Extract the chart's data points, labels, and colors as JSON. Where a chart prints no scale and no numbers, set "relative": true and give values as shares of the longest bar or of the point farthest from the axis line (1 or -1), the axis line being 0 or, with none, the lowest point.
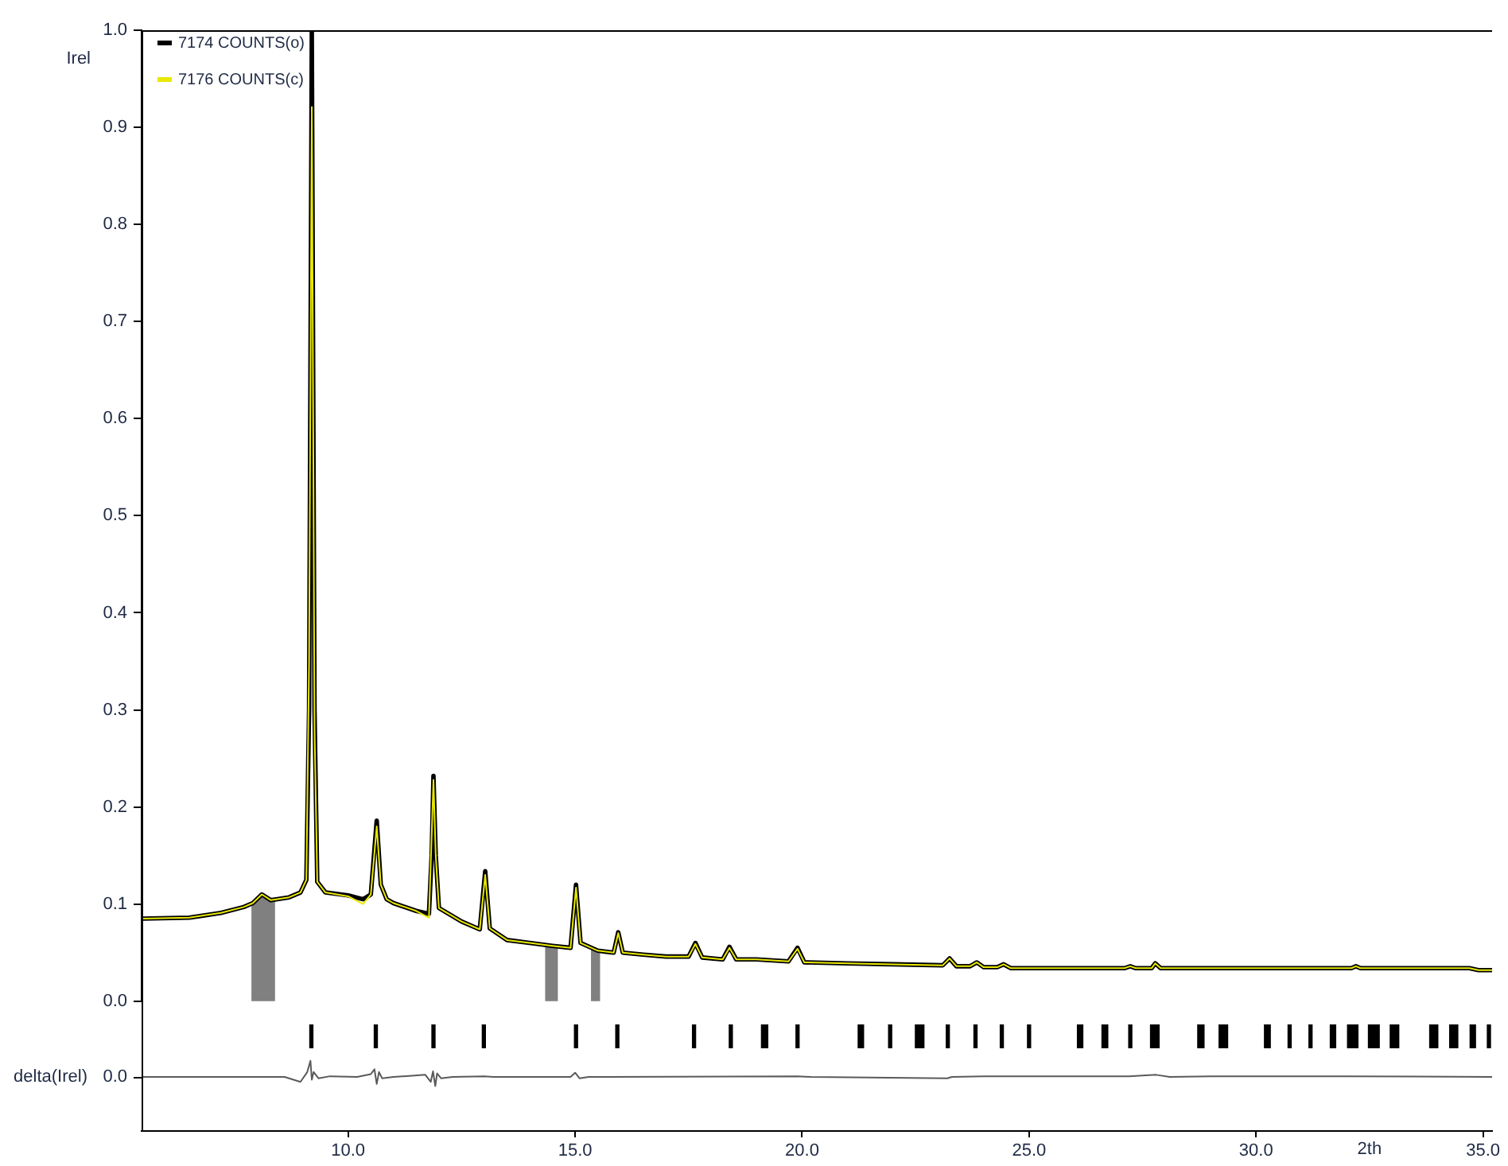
{
  "chart_data": [
    {
      "type": "line",
      "ylabel": "Irel",
      "xlim": [
        5.45,
        35.2
      ],
      "ylim": [
        0,
        1
      ],
      "yticks": [
        {
          "value": 0,
          "label": "0.0"
        },
        0.1,
        0.2,
        0.3,
        0.4,
        0.5,
        0.6,
        0.7,
        0.8,
        0.9,
        {
          "value": 1,
          "label": "1.0"
        }
      ],
      "tick_labels": "y",
      "legend": "top left",
      "x": [
        5.45,
        6.5,
        7.2,
        7.7,
        7.9,
        8.1,
        8.3,
        8.7,
        8.95,
        9.08,
        9.14,
        9.2,
        9.26,
        9.32,
        9.5,
        10.0,
        10.33,
        10.5,
        10.63,
        10.72,
        10.85,
        11.0,
        11.5,
        11.78,
        11.84,
        11.88,
        11.93,
        12.0,
        12.5,
        12.9,
        13.02,
        13.12,
        13.5,
        14.0,
        14.5,
        14.9,
        15.02,
        15.12,
        15.5,
        15.85,
        15.95,
        16.05,
        16.5,
        17.0,
        17.5,
        17.65,
        17.8,
        18.25,
        18.4,
        18.55,
        19.0,
        19.7,
        19.9,
        20.05,
        21.0,
        22.0,
        23.1,
        23.25,
        23.4,
        23.7,
        23.85,
        24.0,
        24.3,
        24.44,
        24.6,
        27.1,
        27.23,
        27.35,
        27.7,
        27.78,
        27.9,
        32.1,
        32.2,
        32.3,
        34.7,
        34.9,
        35.2
      ],
      "series": [
        {
          "name": "7174 COUNTS(o)",
          "color": "#000000",
          "values": [
            0.085,
            0.086,
            0.091,
            0.097,
            0.101,
            0.11,
            0.104,
            0.107,
            0.112,
            0.125,
            0.3,
            1.0,
            0.3,
            0.123,
            0.112,
            0.109,
            0.105,
            0.11,
            0.186,
            0.12,
            0.105,
            0.101,
            0.093,
            0.09,
            0.15,
            0.232,
            0.15,
            0.096,
            0.082,
            0.074,
            0.134,
            0.075,
            0.063,
            0.06,
            0.057,
            0.055,
            0.12,
            0.06,
            0.052,
            0.05,
            0.071,
            0.05,
            0.048,
            0.046,
            0.046,
            0.06,
            0.045,
            0.043,
            0.056,
            0.043,
            0.043,
            0.041,
            0.055,
            0.04,
            0.039,
            0.038,
            0.037,
            0.044,
            0.036,
            0.036,
            0.04,
            0.035,
            0.035,
            0.038,
            0.034,
            0.034,
            0.036,
            0.034,
            0.034,
            0.039,
            0.034,
            0.034,
            0.036,
            0.034,
            0.034,
            0.032,
            0.032
          ]
        },
        {
          "name": "7176 COUNTS(c)",
          "color": "#e8e800",
          "values": [
            0.085,
            0.086,
            0.091,
            0.097,
            0.101,
            0.11,
            0.104,
            0.107,
            0.112,
            0.125,
            0.35,
            0.921,
            0.28,
            0.123,
            0.112,
            0.108,
            0.1,
            0.11,
            0.18,
            0.12,
            0.105,
            0.101,
            0.093,
            0.086,
            0.17,
            0.228,
            0.15,
            0.096,
            0.082,
            0.074,
            0.13,
            0.075,
            0.063,
            0.06,
            0.057,
            0.055,
            0.117,
            0.06,
            0.052,
            0.05,
            0.07,
            0.05,
            0.048,
            0.046,
            0.046,
            0.059,
            0.045,
            0.043,
            0.055,
            0.043,
            0.043,
            0.041,
            0.054,
            0.04,
            0.039,
            0.038,
            0.037,
            0.044,
            0.036,
            0.036,
            0.04,
            0.035,
            0.035,
            0.038,
            0.034,
            0.034,
            0.036,
            0.034,
            0.034,
            0.039,
            0.034,
            0.034,
            0.036,
            0.034,
            0.034,
            0.032,
            0.032
          ]
        }
      ],
      "bands": [
        {
          "axis": "x",
          "from": 7.87,
          "to": 8.39,
          "color": "#808080"
        },
        {
          "axis": "x",
          "from": 14.34,
          "to": 14.62,
          "color": "#808080"
        },
        {
          "axis": "x",
          "from": 15.35,
          "to": 15.55,
          "color": "#808080"
        }
      ]
    },
    {
      "type": "bar",
      "relative": true,
      "xlim": [
        5.45,
        35.2
      ],
      "tick_labels": false,
      "color": "#000000",
      "x": [
        9.19,
        10.61,
        11.88,
        12.99,
        15.02,
        15.93,
        17.62,
        18.43,
        19.14,
        19.21,
        19.9,
        21.27,
        21.32,
        21.94,
        22.53,
        22.59,
        22.65,
        23.21,
        23.82,
        24.4,
        25.0,
        26.1,
        26.15,
        26.64,
        26.7,
        27.23,
        27.71,
        27.77,
        27.83,
        28.75,
        28.82,
        29.22,
        29.28,
        29.34,
        30.22,
        30.28,
        30.74,
        31.2,
        31.67,
        31.72,
        32.05,
        32.09,
        32.15,
        32.21,
        32.51,
        32.57,
        32.62,
        32.68,
        32.99,
        33.05,
        33.11,
        33.86,
        33.92,
        33.97,
        34.3,
        34.35,
        34.41,
        34.75,
        34.8,
        35.13
      ],
      "values": [
        1,
        1,
        1,
        1,
        1,
        1,
        1,
        1,
        1,
        1,
        1,
        1,
        1,
        1,
        1,
        1,
        1,
        1,
        1,
        1,
        1,
        1,
        1,
        1,
        1,
        1,
        1,
        1,
        1,
        1,
        1,
        1,
        1,
        1,
        1,
        1,
        1,
        1,
        1,
        1,
        1,
        1,
        1,
        1,
        1,
        1,
        1,
        1,
        1,
        1,
        1,
        1,
        1,
        1,
        1,
        1,
        1,
        1,
        1,
        1
      ]
    },
    {
      "type": "line",
      "relative": true,
      "ylabel": "delta(Irel)",
      "xlabel": "2th",
      "xlim": [
        5.45,
        35.2
      ],
      "annotations": [
        "0.0"
      ],
      "xticks": [
        {
          "value": 10,
          "label": "10.0"
        },
        {
          "value": 15,
          "label": "15.0"
        },
        {
          "value": 20,
          "label": "20.0"
        },
        {
          "value": 25,
          "label": "25.0"
        },
        {
          "value": 30,
          "label": "30.0"
        },
        {
          "value": 35,
          "label": "35.0"
        }
      ],
      "color": "#5a5a5a",
      "x": [
        5.45,
        8.6,
        8.95,
        9.1,
        9.17,
        9.2,
        9.24,
        9.35,
        9.6,
        10.2,
        10.5,
        10.58,
        10.63,
        10.68,
        10.75,
        11.0,
        11.7,
        11.82,
        11.87,
        11.92,
        11.96,
        12.05,
        12.3,
        13.0,
        13.2,
        14.9,
        15.0,
        15.1,
        15.3,
        19.9,
        20.2,
        23.2,
        23.3,
        24.0,
        27.2,
        27.8,
        28.1,
        29.0,
        32.0,
        35.2
      ],
      "values": [
        0.77,
        0.77,
        0.7,
        0.84,
        1,
        0.73,
        0.84,
        0.75,
        0.78,
        0.77,
        0.81,
        0.88,
        0.67,
        0.84,
        0.75,
        0.77,
        0.8,
        0.7,
        0.85,
        0.64,
        0.82,
        0.75,
        0.77,
        0.78,
        0.77,
        0.77,
        0.83,
        0.75,
        0.77,
        0.78,
        0.77,
        0.75,
        0.77,
        0.78,
        0.78,
        0.8,
        0.77,
        0.78,
        0.78,
        0.77
      ]
    }
  ]
}
